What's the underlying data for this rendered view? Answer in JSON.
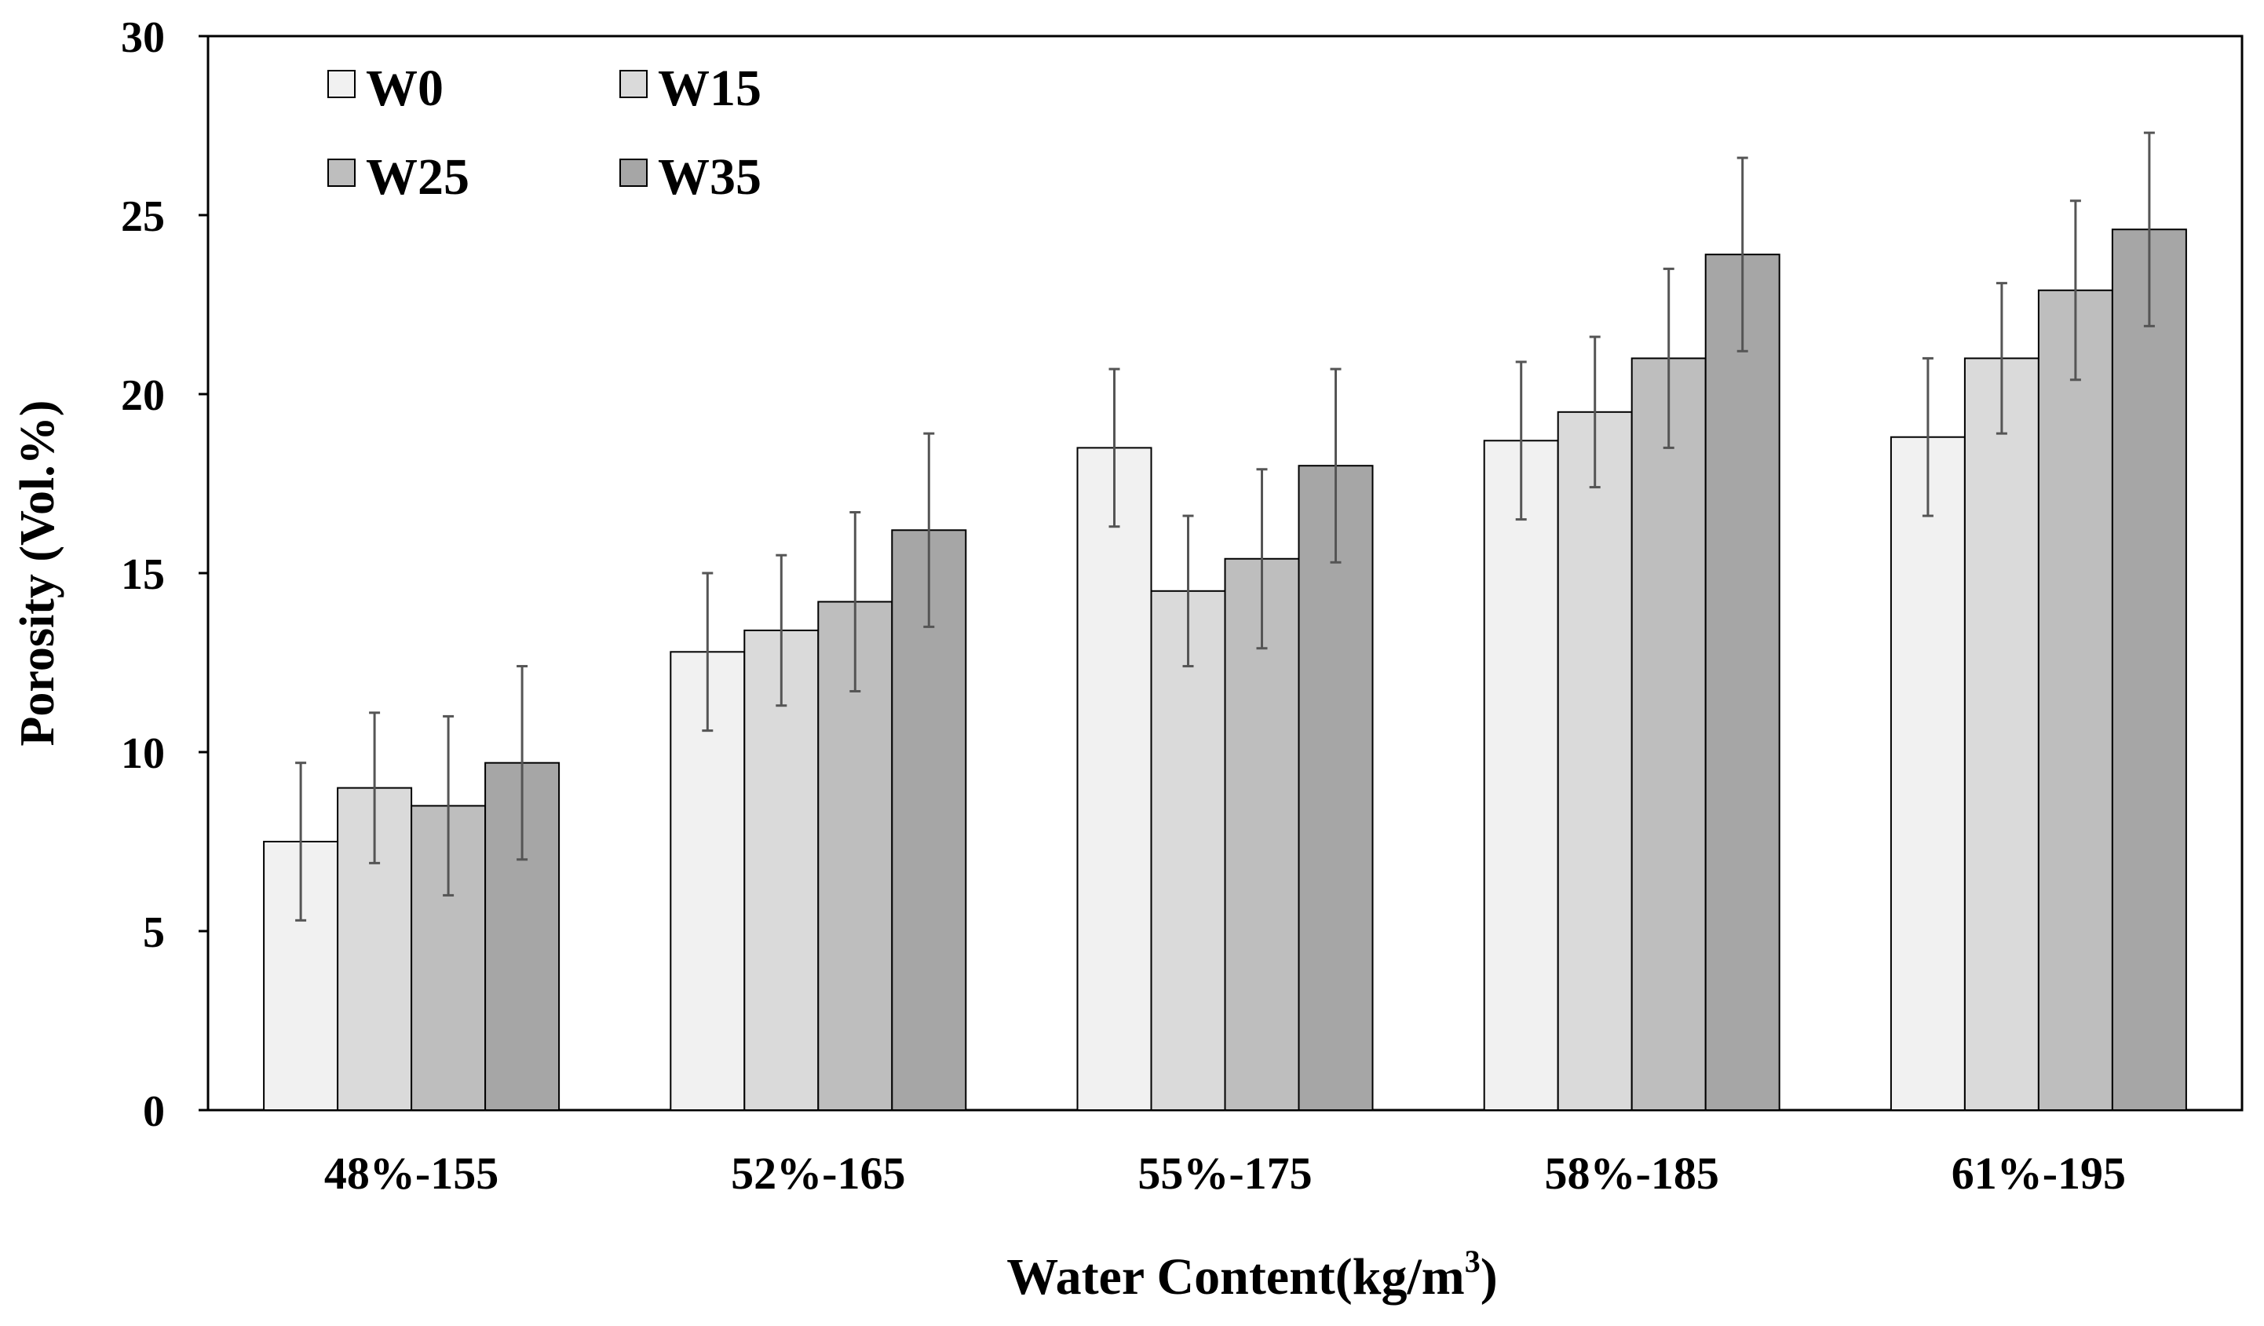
{
  "chart_data": {
    "type": "bar",
    "title": "",
    "xlabel_main": "Water Content(kg/m",
    "xlabel_sup": "3",
    "xlabel_tail": ")",
    "ylabel": "Porosity (Vol.%)",
    "ylim": [
      0,
      30
    ],
    "yticks": [
      0,
      5,
      10,
      15,
      20,
      25,
      30
    ],
    "grid": false,
    "legend_position": "top-left",
    "categories": [
      "48%-155",
      "52%-165",
      "55%-175",
      "58%-185",
      "61%-195"
    ],
    "series": [
      {
        "name": "W0",
        "color": "#f1f1f1",
        "values": [
          7.5,
          12.8,
          18.5,
          18.7,
          18.8
        ],
        "errors": [
          2.2,
          2.2,
          2.2,
          2.2,
          2.2
        ]
      },
      {
        "name": "W15",
        "color": "#dadada",
        "values": [
          9.0,
          13.4,
          14.5,
          19.5,
          21.0
        ],
        "errors": [
          2.1,
          2.1,
          2.1,
          2.1,
          2.1
        ]
      },
      {
        "name": "W25",
        "color": "#bebebe",
        "values": [
          8.5,
          14.2,
          15.4,
          21.0,
          22.9
        ],
        "errors": [
          2.5,
          2.5,
          2.5,
          2.5,
          2.5
        ]
      },
      {
        "name": "W35",
        "color": "#a6a6a6",
        "values": [
          9.7,
          16.2,
          18.0,
          23.9,
          24.6
        ],
        "errors": [
          2.7,
          2.7,
          2.7,
          2.7,
          2.7
        ]
      }
    ]
  }
}
